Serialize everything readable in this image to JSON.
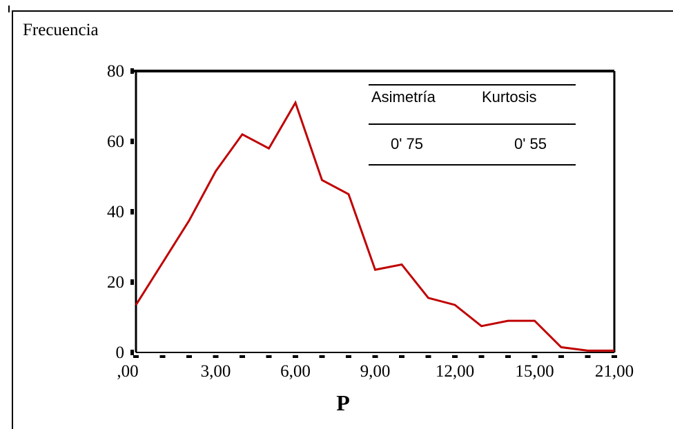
{
  "chart_data": {
    "type": "line",
    "ylabel": "Frecuencia",
    "xlabel": "P",
    "ylim": [
      0,
      80
    ],
    "yticks": [
      0,
      20,
      40,
      60,
      80
    ],
    "xtick_labels": [
      ",00",
      "3,00",
      "6,00",
      "9,00",
      "12,00",
      "15,00",
      "21,00"
    ],
    "grid": false,
    "series": [
      {
        "color": "#c00000",
        "values": [
          13.5,
          25.5,
          37.5,
          51.5,
          62,
          58,
          71,
          49,
          45,
          23.5,
          25,
          15.5,
          13.5,
          7.5,
          9,
          9,
          1.5,
          0.5,
          0.5
        ]
      }
    ],
    "annotation_table": {
      "headers": [
        "Asimetría",
        "Kurtosis"
      ],
      "values": [
        "0' 75",
        "0' 55"
      ]
    }
  },
  "colors": {
    "line": "#c00000",
    "axis": "#000000"
  }
}
